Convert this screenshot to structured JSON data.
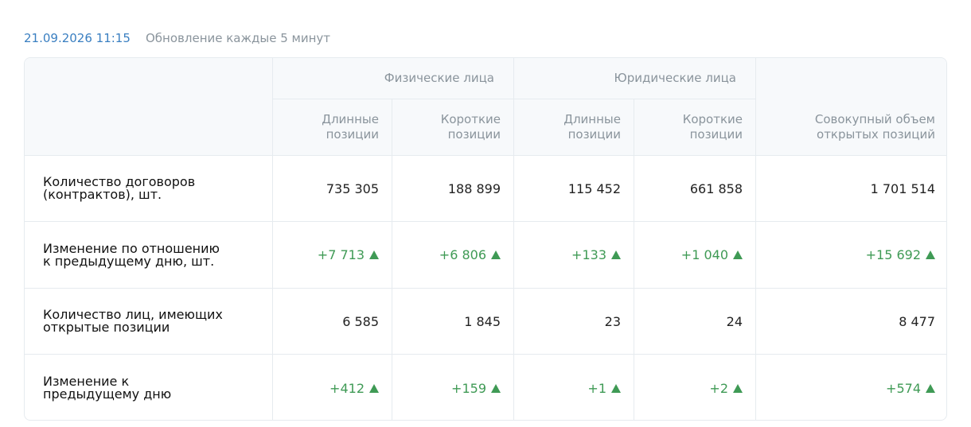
{
  "header": {
    "date": "21.09.2026 11:15",
    "note": "Обновление каждые 5 минут"
  },
  "table": {
    "groups": [
      "Физические лица",
      "Юридические лица"
    ],
    "columns": [
      "Длинные позиции",
      "Короткие позиции",
      "Длинные позиции",
      "Короткие позиции",
      "Совокупный объем открытых позиций"
    ],
    "rows": [
      {
        "label": "Количество договоров (контрактов), шт.",
        "values": [
          "735 305",
          "188 899",
          "115 452",
          "661 858",
          "1 701 514"
        ]
      },
      {
        "label": "Изменение по отношению к предыдущему дню, шт.",
        "values": [
          "+7 713",
          "+6 806",
          "+133",
          "+1 040",
          "+15 692"
        ],
        "color": "#3f9a55"
      },
      {
        "label": "Количество лиц, имеющих открытые позиции",
        "values": [
          "6 585",
          "1 845",
          "23",
          "24",
          "8 477"
        ]
      },
      {
        "label": "Изменение к предыдущему дню",
        "values": [
          "+412",
          "+159",
          "+1",
          "+2",
          "+574"
        ],
        "color": "#3f9a55"
      }
    ]
  }
}
